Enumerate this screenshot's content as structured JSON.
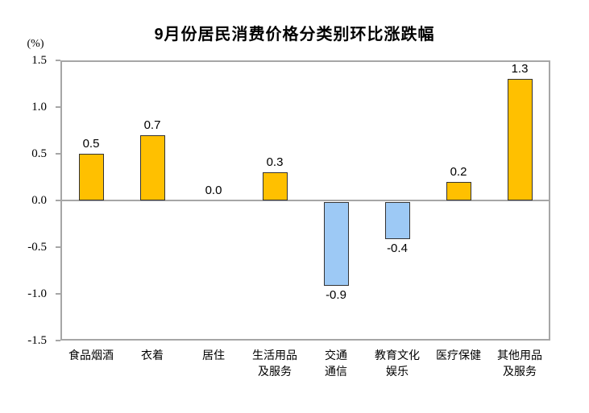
{
  "chart_data": {
    "type": "bar",
    "title": "9月份居民消费价格分类别环比涨跌幅",
    "unit_label": "(%)",
    "categories": [
      "食品烟酒",
      "衣着",
      "居住",
      "生活用品\n及服务",
      "交通\n通信",
      "教育文化\n娱乐",
      "医疗保健",
      "其他用品\n及服务"
    ],
    "values": [
      0.5,
      0.7,
      0.0,
      0.3,
      -0.9,
      -0.4,
      0.2,
      1.3
    ],
    "value_labels": [
      "0.5",
      "0.7",
      "0.0",
      "0.3",
      "-0.9",
      "-0.4",
      "0.2",
      "1.3"
    ],
    "y_ticks": [
      "1.5",
      "1.0",
      "0.5",
      "0.0",
      "-0.5",
      "-1.0",
      "-1.5"
    ],
    "ylim": [
      -1.5,
      1.5
    ],
    "grid": false,
    "legend": "none",
    "colors": {
      "positive_fill": "#FFC000",
      "negative_fill": "#9DC9F5",
      "bar_border": "#333333",
      "axis": "#A6A6A6",
      "text": "#000000"
    }
  }
}
